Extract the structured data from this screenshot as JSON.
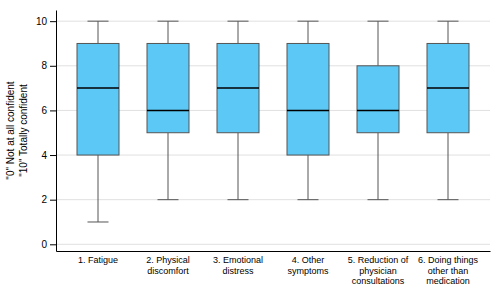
{
  "chart_data": {
    "type": "box",
    "categories": [
      "1. Fatigue",
      "2. Physical\ndiscomfort",
      "3. Emotional\ndistress",
      "4. Other\nsymptoms",
      "5. Reduction of\nphysician\nconsultations",
      "6. Doing things\nother than\nmedication"
    ],
    "min": [
      1,
      2,
      2,
      2,
      2,
      2
    ],
    "q1": [
      4,
      5,
      5,
      4,
      5,
      5
    ],
    "median": [
      7,
      6,
      7,
      6,
      6,
      7
    ],
    "q3": [
      9,
      9,
      9,
      9,
      8,
      9
    ],
    "max": [
      10,
      10,
      10,
      10,
      10,
      10
    ],
    "color": "#5BC8F5",
    "ylabel": "\"0\" Not at all confident\n\"10\" Totally confident",
    "ylim": [
      -0.3,
      10.5
    ],
    "yticks": [
      0,
      2,
      4,
      6,
      8,
      10
    ],
    "grid": true
  }
}
